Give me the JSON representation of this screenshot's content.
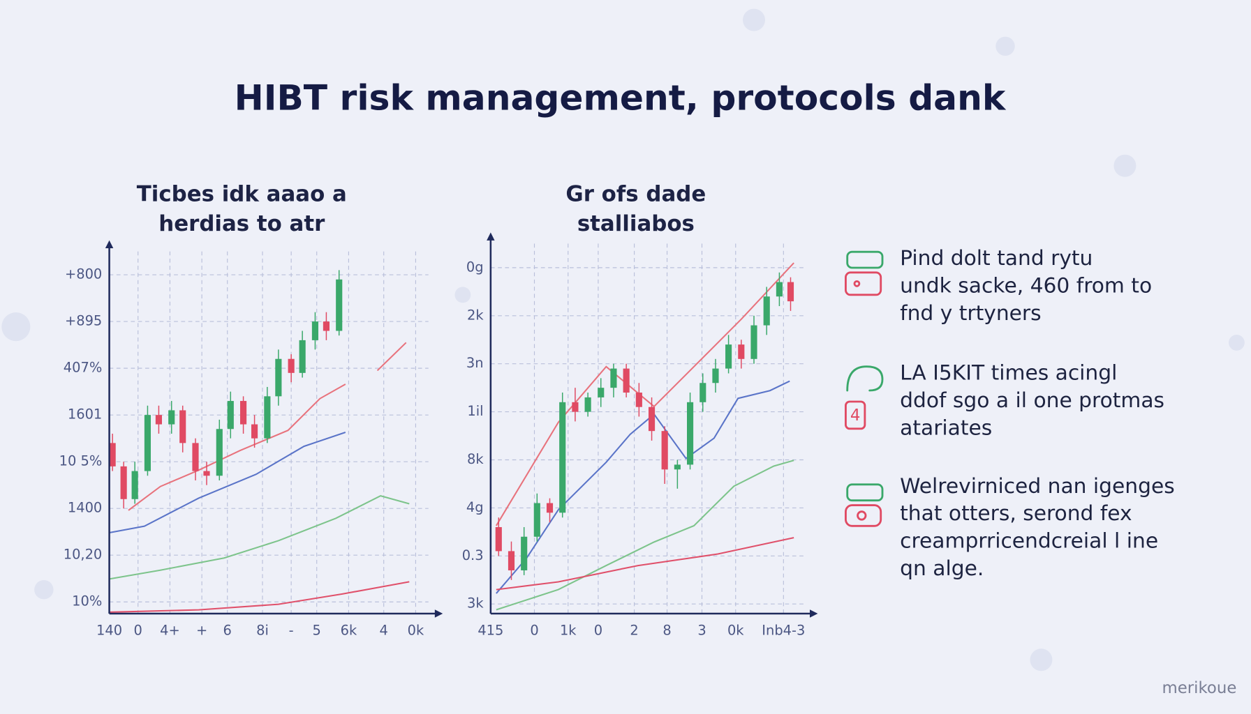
{
  "title": "HIBT risk management, protocols dank",
  "chart_data": [
    {
      "type": "candlestick",
      "title": [
        "Ticbes idk aaao a",
        "herdias to atr"
      ],
      "xlim": [
        -0.2,
        10
      ],
      "ylim": [
        -0.25,
        7.5
      ],
      "grid": true,
      "xticks": [
        {
          "value": -0.2,
          "label": "140"
        },
        {
          "value": 0.7,
          "label": "0"
        },
        {
          "value": 1.7,
          "label": "4+"
        },
        {
          "value": 2.7,
          "label": "+"
        },
        {
          "value": 3.5,
          "label": "6"
        },
        {
          "value": 4.6,
          "label": "8i"
        },
        {
          "value": 5.5,
          "label": "-"
        },
        {
          "value": 6.3,
          "label": "5"
        },
        {
          "value": 7.3,
          "label": "6k"
        },
        {
          "value": 8.4,
          "label": "4"
        },
        {
          "value": 9.4,
          "label": "0k"
        }
      ],
      "yticks": [
        {
          "value": 7,
          "label": "+800"
        },
        {
          "value": 6,
          "label": "+895"
        },
        {
          "value": 5,
          "label": "407%"
        },
        {
          "value": 4,
          "label": "1601"
        },
        {
          "value": 3,
          "label": "10 5%"
        },
        {
          "value": 2,
          "label": "1400"
        },
        {
          "value": 1,
          "label": "10,20"
        },
        {
          "value": 0,
          "label": "10%"
        }
      ],
      "candles": {
        "up_color": "#3aa86a",
        "down_color": "#e04a63",
        "x": [
          -0.1,
          0.25,
          0.6,
          1.0,
          1.35,
          1.75,
          2.1,
          2.5,
          2.85,
          3.25,
          3.6,
          4.0,
          4.35,
          4.75,
          5.1,
          5.5,
          5.85,
          6.25,
          6.6,
          7.0
        ],
        "open": [
          3.4,
          2.9,
          2.2,
          2.8,
          4.0,
          3.8,
          4.1,
          3.4,
          2.8,
          2.7,
          3.7,
          4.3,
          3.8,
          3.5,
          4.4,
          5.2,
          4.9,
          5.6,
          6.0,
          5.8
        ],
        "high": [
          3.6,
          3.0,
          3.0,
          4.2,
          4.2,
          4.3,
          4.2,
          3.5,
          3.0,
          3.9,
          4.5,
          4.4,
          4.0,
          4.6,
          5.4,
          5.3,
          5.8,
          6.2,
          6.2,
          7.1
        ],
        "low": [
          2.8,
          2.0,
          2.1,
          2.7,
          3.6,
          3.6,
          3.2,
          2.6,
          2.5,
          2.6,
          3.5,
          3.6,
          3.3,
          3.4,
          4.2,
          4.7,
          4.8,
          5.4,
          5.6,
          5.7
        ],
        "close": [
          2.9,
          2.2,
          2.8,
          4.0,
          3.8,
          4.1,
          3.4,
          2.8,
          2.7,
          3.7,
          4.3,
          3.8,
          3.5,
          4.4,
          5.2,
          4.9,
          5.6,
          6.0,
          5.8,
          6.9
        ]
      },
      "series": [
        {
          "color": "#e8727c",
          "x": [
            0.4,
            1.4,
            2.6,
            3.9,
            5.4,
            6.4,
            7.2,
            7.7,
            8.2,
            9.1
          ],
          "values": [
            1.96,
            2.47,
            2.82,
            3.24,
            3.67,
            4.35,
            4.66,
            null,
            4.95,
            5.55
          ]
        },
        {
          "color": "#5a74c8",
          "x": [
            -0.2,
            0.9,
            2.6,
            4.4,
            5.9,
            7.2
          ],
          "values": [
            1.48,
            1.62,
            2.22,
            2.73,
            3.33,
            3.63
          ]
        },
        {
          "color": "#7dc48b",
          "x": [
            -0.2,
            1.4,
            3.4,
            5.1,
            6.9,
            8.3,
            9.2
          ],
          "values": [
            0.49,
            0.68,
            0.94,
            1.31,
            1.79,
            2.27,
            2.1
          ]
        },
        {
          "color": "#e0506a",
          "x": [
            -0.2,
            2.6,
            5.1,
            7.1,
            9.2
          ],
          "values": [
            -0.22,
            -0.17,
            -0.05,
            0.17,
            0.43
          ]
        }
      ]
    },
    {
      "type": "candlestick",
      "title": [
        "Gr ofs dade",
        "stalliabos"
      ],
      "xlim": [
        -0.4,
        10.4
      ],
      "ylim": [
        -0.2,
        7.5
      ],
      "grid": true,
      "xticks": [
        {
          "value": -0.4,
          "label": "415"
        },
        {
          "value": 1.08,
          "label": "0"
        },
        {
          "value": 2.22,
          "label": "1k"
        },
        {
          "value": 3.24,
          "label": "0"
        },
        {
          "value": 4.46,
          "label": "2"
        },
        {
          "value": 5.57,
          "label": "8"
        },
        {
          "value": 6.75,
          "label": "3"
        },
        {
          "value": 7.89,
          "label": "0k"
        },
        {
          "value": 9.51,
          "label": "Inb4-3"
        }
      ],
      "yticks": [
        {
          "value": 7,
          "label": "0g"
        },
        {
          "value": 6,
          "label": "2k"
        },
        {
          "value": 5,
          "label": "3n"
        },
        {
          "value": 4,
          "label": "1il"
        },
        {
          "value": 3,
          "label": "8k"
        },
        {
          "value": 2,
          "label": "4g"
        },
        {
          "value": 1,
          "label": "0.3"
        },
        {
          "value": 0,
          "label": "3k"
        }
      ],
      "candles": {
        "up_color": "#3aa86a",
        "down_color": "#e04a63",
        "x": [
          -0.13,
          0.3,
          0.73,
          1.17,
          1.6,
          2.03,
          2.46,
          2.89,
          3.33,
          3.76,
          4.19,
          4.62,
          5.05,
          5.49,
          5.92,
          6.35,
          6.78,
          7.21,
          7.65,
          8.08,
          8.51,
          8.94,
          9.37,
          9.75
        ],
        "open": [
          1.6,
          1.1,
          0.7,
          1.4,
          2.1,
          1.9,
          4.2,
          4.0,
          4.3,
          4.5,
          4.9,
          4.4,
          4.1,
          3.6,
          2.8,
          2.9,
          4.2,
          4.6,
          4.9,
          5.4,
          5.1,
          5.8,
          6.4,
          6.7
        ],
        "high": [
          1.8,
          1.3,
          1.6,
          2.3,
          2.2,
          4.4,
          4.5,
          4.4,
          4.7,
          5.0,
          5.0,
          4.6,
          4.3,
          3.7,
          3.0,
          4.4,
          4.8,
          5.1,
          5.6,
          5.5,
          6.0,
          6.6,
          6.9,
          6.8
        ],
        "low": [
          1.0,
          0.5,
          0.6,
          1.3,
          1.7,
          1.8,
          3.8,
          3.9,
          4.1,
          4.3,
          4.3,
          3.9,
          3.4,
          2.5,
          2.4,
          2.8,
          4.0,
          4.4,
          4.8,
          4.9,
          5.0,
          5.6,
          6.2,
          6.1
        ],
        "close": [
          1.1,
          0.7,
          1.4,
          2.1,
          1.9,
          4.2,
          4.0,
          4.3,
          4.5,
          4.9,
          4.4,
          4.1,
          3.6,
          2.8,
          2.9,
          4.2,
          4.6,
          4.9,
          5.4,
          5.1,
          5.8,
          6.4,
          6.7,
          6.3
        ]
      },
      "series": [
        {
          "color": "#e8727c",
          "x": [
            -0.21,
            1.89,
            3.51,
            5.13,
            6.48,
            8.1,
            9.86
          ],
          "values": [
            1.63,
            3.78,
            4.94,
            4.11,
            4.94,
            5.94,
            7.1
          ]
        },
        {
          "color": "#5a74c8",
          "x": [
            -0.21,
            0.82,
            1.89,
            3.51,
            4.32,
            5.13,
            6.21,
            7.16,
            7.97,
            9.05,
            9.72
          ],
          "values": [
            0.22,
            0.96,
            1.96,
            2.95,
            3.53,
            3.95,
            3.03,
            3.45,
            4.28,
            4.44,
            4.64
          ]
        },
        {
          "color": "#7dc48b",
          "x": [
            -0.21,
            1.89,
            3.51,
            5.13,
            6.48,
            7.83,
            9.18,
            9.86
          ],
          "values": [
            -0.12,
            0.3,
            0.8,
            1.29,
            1.63,
            2.45,
            2.87,
            2.99
          ]
        },
        {
          "color": "#e0506a",
          "x": [
            -0.21,
            1.89,
            4.59,
            7.29,
            9.86
          ],
          "values": [
            0.3,
            0.46,
            0.8,
            1.04,
            1.38
          ]
        }
      ]
    }
  ],
  "notes": [
    {
      "lines": [
        "Pind dolt tand rytu",
        "undk sacke, 460 from to",
        "fnd y trtyners"
      ]
    },
    {
      "lines": [
        "LA I5KIT  times acingl",
        "ddof sgo a il one protmas",
        "atariates"
      ]
    },
    {
      "lines": [
        "Welrevirniced nan igenges",
        "that otters, serond fex",
        "creamprricendcreial l ine",
        "qn alge."
      ]
    }
  ],
  "watermark": "merikoue"
}
